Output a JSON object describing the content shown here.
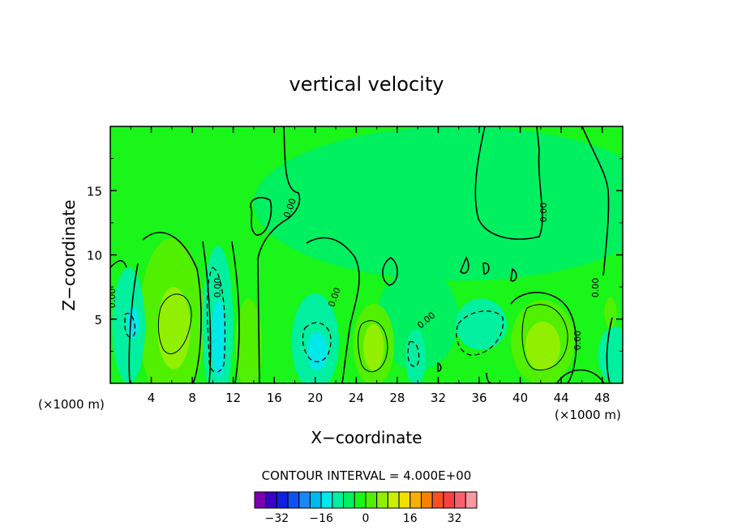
{
  "chart_data": {
    "type": "heatmap",
    "title": "vertical velocity",
    "xlabel": "X−coordinate",
    "ylabel": "Z−coordinate",
    "x_unit_left": "(×1000 m)",
    "x_unit_right": "(×1000 m)",
    "xlim": [
      0,
      50
    ],
    "ylim": [
      0,
      20
    ],
    "x_ticks": [
      4,
      8,
      12,
      16,
      20,
      24,
      28,
      32,
      36,
      40,
      44,
      48
    ],
    "y_ticks": [
      5,
      10,
      15
    ],
    "contour_interval_text": "CONTOUR INTERVAL = 4.000E+00",
    "contour_label": "0.00",
    "colorbar": {
      "colors": [
        "#7a00b0",
        "#3a00c8",
        "#1020e0",
        "#1050f0",
        "#1888f4",
        "#00b8f0",
        "#00e8e8",
        "#00f0a0",
        "#00f060",
        "#1af51a",
        "#50f000",
        "#90f000",
        "#c8f000",
        "#f0e000",
        "#f8b000",
        "#f88000",
        "#f85020",
        "#f84040",
        "#f86070",
        "#f89aa0"
      ],
      "tick_labels": [
        "−32",
        "−16",
        "0",
        "16",
        "32"
      ],
      "tick_values": [
        -32,
        -16,
        0,
        16,
        32
      ],
      "vmin": -40,
      "vmax": 40
    },
    "background_color": "#1af51a",
    "regions": [
      {
        "color": "#00f060",
        "x": 34,
        "y": 14,
        "rx": 20,
        "ry": 6
      },
      {
        "color": "#00f060",
        "x": 30,
        "y": 5,
        "rx": 4,
        "ry": 4
      },
      {
        "color": "#50f000",
        "x": 6,
        "y": 4.8,
        "rx": 3.2,
        "ry": 6.5
      },
      {
        "color": "#90f000",
        "x": 6.2,
        "y": 4.3,
        "rx": 1.6,
        "ry": 3.2
      },
      {
        "color": "#50f000",
        "x": 42.2,
        "y": 3.2,
        "rx": 3.1,
        "ry": 3.3
      },
      {
        "color": "#90f000",
        "x": 42.2,
        "y": 2.9,
        "rx": 1.7,
        "ry": 1.9
      },
      {
        "color": "#50f000",
        "x": 25.7,
        "y": 3.0,
        "rx": 2.0,
        "ry": 3.2
      },
      {
        "color": "#90f000",
        "x": 25.7,
        "y": 2.8,
        "rx": 1.0,
        "ry": 1.8
      },
      {
        "color": "#50f000",
        "x": 13.5,
        "y": 3.0,
        "rx": 1.3,
        "ry": 3.6
      },
      {
        "color": "#00f0a0",
        "x": 10.5,
        "y": 4.5,
        "rx": 1.5,
        "ry": 6.2
      },
      {
        "color": "#00e8e8",
        "x": 10.6,
        "y": 3.5,
        "rx": 0.7,
        "ry": 3.0
      },
      {
        "color": "#00f0a0",
        "x": 20.0,
        "y": 3.2,
        "rx": 2.3,
        "ry": 3.8
      },
      {
        "color": "#00e8e8",
        "x": 20.2,
        "y": 2.5,
        "rx": 1.0,
        "ry": 1.5
      },
      {
        "color": "#00f0a0",
        "x": 36.2,
        "y": 4.6,
        "rx": 2.5,
        "ry": 2.0
      },
      {
        "color": "#00f0a0",
        "x": 1.8,
        "y": 4.5,
        "rx": 1.6,
        "ry": 4.5
      },
      {
        "color": "#00e8e8",
        "x": 2.2,
        "y": 4.7,
        "rx": 0.6,
        "ry": 1.2
      },
      {
        "color": "#00f0a0",
        "x": 29.8,
        "y": 2.0,
        "rx": 1.0,
        "ry": 2.2
      },
      {
        "color": "#00f0a0",
        "x": 49.2,
        "y": 2.2,
        "rx": 1.6,
        "ry": 2.2
      },
      {
        "color": "#50f000",
        "x": 48.8,
        "y": 5.5,
        "rx": 0.6,
        "ry": 1.2
      }
    ]
  }
}
